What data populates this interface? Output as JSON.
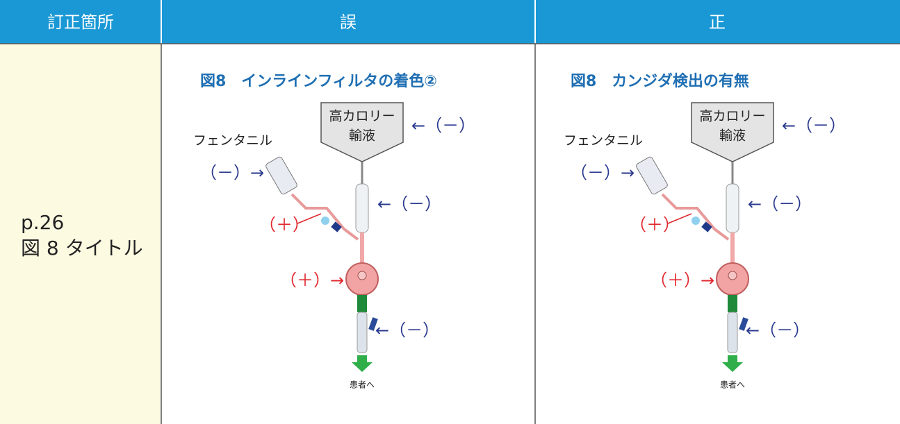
{
  "header": [
    "訂正箇所",
    "誤",
    "正"
  ],
  "location": [
    "p.26",
    "図 8 タイトル"
  ],
  "figures": [
    {
      "title": "図8　インラインフィルタの着色②",
      "labels": {
        "bag": [
          "高カロリー",
          "輸液"
        ],
        "fentanyl": "フェンタニル",
        "bag_result": "←（－）",
        "syringe_result": "（－）→",
        "line_result": "（＋）",
        "chamber_result": "←（－）",
        "filter_result": "（＋）→",
        "lower_result": "←（－）",
        "patient": "患者へ"
      }
    },
    {
      "title": "図8　カンジダ検出の有無",
      "labels": {
        "bag": [
          "高カロリー",
          "輸液"
        ],
        "fentanyl": "フェンタニル",
        "bag_result": "←（－）",
        "syringe_result": "（－）→",
        "line_result": "（＋）",
        "chamber_result": "←（－）",
        "filter_result": "（＋）→",
        "lower_result": "←（－）",
        "patient": "患者へ"
      }
    }
  ]
}
